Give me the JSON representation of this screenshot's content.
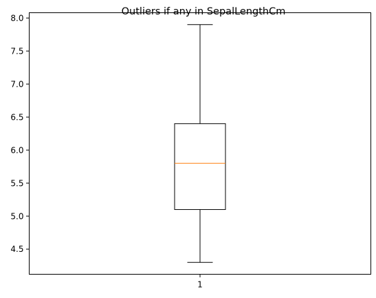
{
  "chart_data": {
    "type": "box",
    "title": "Outliers if any in SepalLengthCm",
    "xlabel": "",
    "ylabel": "",
    "categories": [
      "1"
    ],
    "ylim": [
      4.12,
      8.08
    ],
    "yticks": [
      "4.5",
      "5.0",
      "5.5",
      "6.0",
      "6.5",
      "7.0",
      "7.5",
      "8.0"
    ],
    "grid": false,
    "boxes": [
      {
        "category": "1",
        "whisker_low": 4.3,
        "q1": 5.1,
        "median": 5.8,
        "q3": 6.4,
        "whisker_high": 7.9,
        "outliers": []
      }
    ],
    "colors": {
      "box": "#000000",
      "median": "#ff7f0e"
    }
  }
}
